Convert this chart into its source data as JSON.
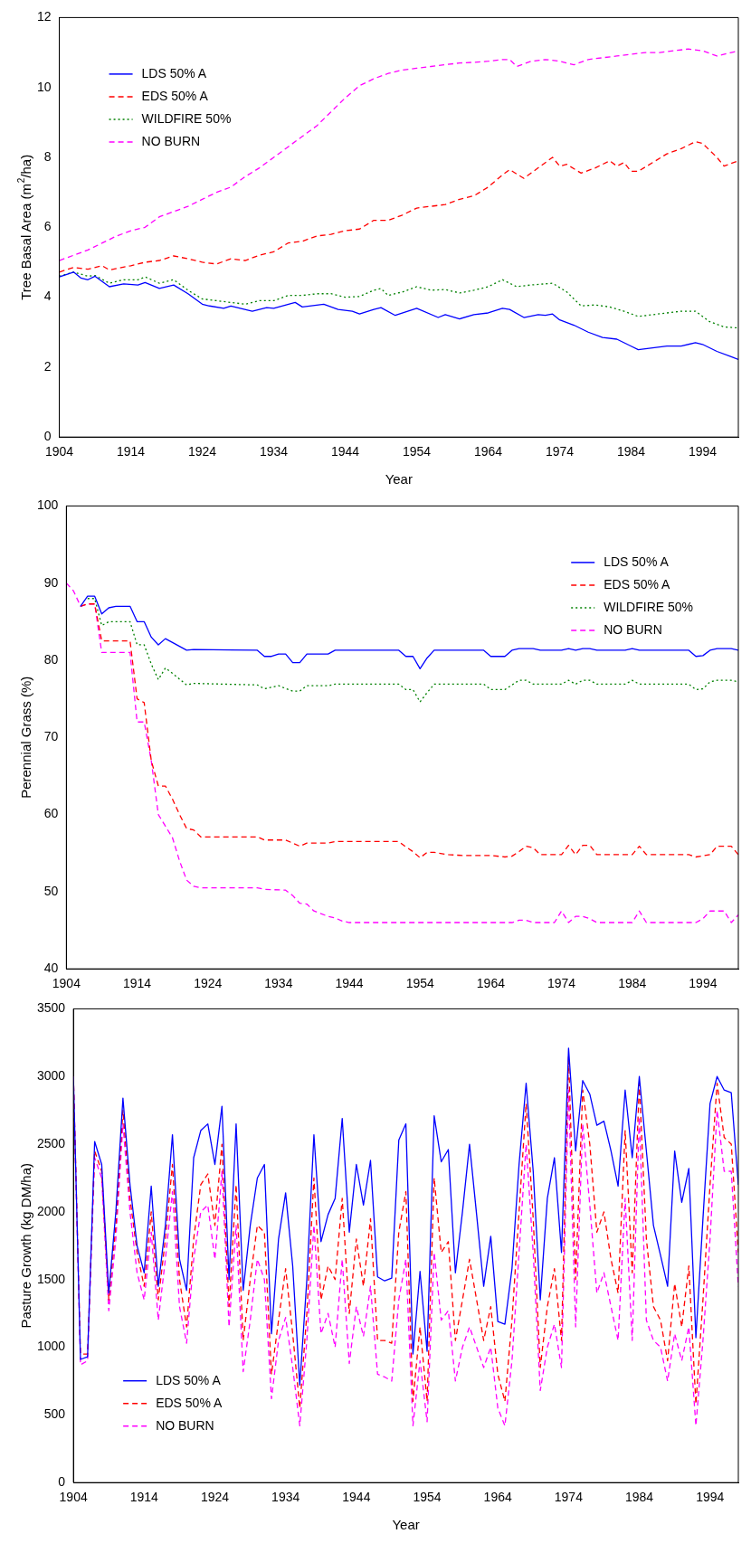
{
  "chart_data": [
    {
      "type": "line",
      "ylabel": "Tree Basal Area (m$^{2}$/ha)",
      "xlabel": "Year",
      "xlim": [
        1904,
        1999
      ],
      "xticks": [
        1904,
        1914,
        1924,
        1934,
        1944,
        1954,
        1964,
        1974,
        1984,
        1994
      ],
      "ylim": [
        0,
        12
      ],
      "yticks": [
        0,
        2,
        4,
        6,
        8,
        10,
        12
      ],
      "legend": "top left",
      "series": [
        {
          "name": "LDS 50% A",
          "color": "#0000ff",
          "line_style": "solid",
          "x": [
            1904,
            1906,
            1907,
            1908,
            1909,
            1911,
            1913,
            1915,
            1916,
            1918,
            1920,
            1922,
            1924,
            1925,
            1927,
            1928,
            1931,
            1933,
            1934,
            1937,
            1938,
            1941,
            1943,
            1945,
            1946,
            1948,
            1949,
            1951,
            1954,
            1957,
            1958,
            1960,
            1962,
            1964,
            1966,
            1967,
            1969,
            1971,
            1972,
            1973,
            1974,
            1976,
            1978,
            1980,
            1982,
            1984,
            1985,
            1987,
            1989,
            1991,
            1993,
            1994,
            1996,
            1998,
            1999
          ],
          "values": [
            4.58,
            4.72,
            4.55,
            4.5,
            4.6,
            4.3,
            4.38,
            4.35,
            4.42,
            4.25,
            4.35,
            4.1,
            3.8,
            3.75,
            3.68,
            3.75,
            3.6,
            3.7,
            3.68,
            3.85,
            3.72,
            3.8,
            3.65,
            3.6,
            3.52,
            3.65,
            3.7,
            3.48,
            3.68,
            3.42,
            3.5,
            3.38,
            3.5,
            3.55,
            3.68,
            3.65,
            3.42,
            3.5,
            3.48,
            3.52,
            3.35,
            3.2,
            3.0,
            2.85,
            2.8,
            2.6,
            2.5,
            2.55,
            2.6,
            2.6,
            2.7,
            2.65,
            2.45,
            2.3,
            2.22
          ]
        },
        {
          "name": "EDS 50% A",
          "color": "#ff0000",
          "line_style": "dashed",
          "x": [
            1904,
            1906,
            1908,
            1910,
            1911,
            1914,
            1916,
            1918,
            1920,
            1922,
            1924,
            1926,
            1928,
            1930,
            1932,
            1934,
            1936,
            1938,
            1940,
            1942,
            1944,
            1946,
            1948,
            1950,
            1952,
            1954,
            1956,
            1958,
            1960,
            1962,
            1964,
            1966,
            1967,
            1969,
            1971,
            1973,
            1974,
            1975,
            1977,
            1979,
            1981,
            1982,
            1983,
            1984,
            1985,
            1987,
            1989,
            1991,
            1993,
            1994,
            1996,
            1997,
            1999
          ],
          "values": [
            4.72,
            4.85,
            4.8,
            4.9,
            4.78,
            4.9,
            5.0,
            5.05,
            5.18,
            5.1,
            5.0,
            4.95,
            5.1,
            5.05,
            5.2,
            5.3,
            5.55,
            5.6,
            5.75,
            5.8,
            5.9,
            5.95,
            6.2,
            6.2,
            6.35,
            6.55,
            6.6,
            6.65,
            6.8,
            6.9,
            7.15,
            7.5,
            7.65,
            7.4,
            7.7,
            8.0,
            7.75,
            7.8,
            7.55,
            7.7,
            7.9,
            7.75,
            7.85,
            7.6,
            7.6,
            7.85,
            8.1,
            8.25,
            8.45,
            8.4,
            8.0,
            7.75,
            7.9
          ]
        },
        {
          "name": "WILDFIRE 50%",
          "color": "#008000",
          "line_style": "dotted",
          "x": [
            1904,
            1906,
            1908,
            1909,
            1911,
            1913,
            1915,
            1916,
            1918,
            1920,
            1922,
            1924,
            1926,
            1928,
            1930,
            1932,
            1934,
            1936,
            1938,
            1940,
            1942,
            1944,
            1946,
            1948,
            1949,
            1950,
            1952,
            1954,
            1956,
            1958,
            1960,
            1962,
            1964,
            1966,
            1968,
            1970,
            1973,
            1975,
            1977,
            1979,
            1981,
            1983,
            1985,
            1987,
            1989,
            1991,
            1993,
            1995,
            1997,
            1999
          ],
          "values": [
            4.6,
            4.72,
            4.6,
            4.62,
            4.4,
            4.5,
            4.5,
            4.58,
            4.4,
            4.5,
            4.2,
            3.95,
            3.9,
            3.85,
            3.8,
            3.9,
            3.9,
            4.05,
            4.05,
            4.1,
            4.1,
            4.0,
            4.02,
            4.2,
            4.25,
            4.05,
            4.15,
            4.3,
            4.2,
            4.22,
            4.12,
            4.2,
            4.3,
            4.5,
            4.3,
            4.35,
            4.4,
            4.15,
            3.75,
            3.78,
            3.72,
            3.6,
            3.45,
            3.5,
            3.55,
            3.6,
            3.6,
            3.3,
            3.15,
            3.12
          ]
        },
        {
          "name": "NO BURN",
          "color": "#ff00ff",
          "line_style": "dashed",
          "x": [
            1904,
            1906,
            1908,
            1910,
            1912,
            1914,
            1916,
            1918,
            1920,
            1922,
            1924,
            1926,
            1928,
            1930,
            1932,
            1934,
            1936,
            1938,
            1940,
            1942,
            1944,
            1946,
            1948,
            1950,
            1952,
            1954,
            1956,
            1958,
            1960,
            1962,
            1964,
            1966,
            1967,
            1968,
            1970,
            1972,
            1974,
            1975,
            1976,
            1978,
            1980,
            1982,
            1984,
            1986,
            1988,
            1990,
            1992,
            1994,
            1996,
            1998,
            1999
          ],
          "values": [
            5.05,
            5.2,
            5.35,
            5.55,
            5.75,
            5.9,
            6.0,
            6.3,
            6.45,
            6.6,
            6.8,
            7.0,
            7.15,
            7.45,
            7.7,
            8.0,
            8.3,
            8.6,
            8.9,
            9.3,
            9.7,
            10.05,
            10.25,
            10.4,
            10.5,
            10.55,
            10.6,
            10.65,
            10.7,
            10.72,
            10.75,
            10.8,
            10.8,
            10.6,
            10.75,
            10.8,
            10.75,
            10.7,
            10.65,
            10.8,
            10.85,
            10.9,
            10.95,
            11.0,
            11.0,
            11.05,
            11.1,
            11.05,
            10.9,
            11.0,
            11.05
          ]
        }
      ]
    },
    {
      "type": "line",
      "ylabel": "Perennial Grass (%)",
      "xlim": [
        1904,
        1999
      ],
      "xticks": [
        1904,
        1914,
        1924,
        1934,
        1944,
        1954,
        1964,
        1974,
        1984,
        1994
      ],
      "ylim": [
        40,
        100
      ],
      "yticks": [
        40,
        50,
        60,
        70,
        80,
        90,
        100
      ],
      "legend": "top right",
      "series": [
        {
          "name": "LDS 50% A",
          "color": "#0000ff",
          "line_style": "solid",
          "x": [
            1906,
            1907,
            1908,
            1909,
            1910,
            1911,
            1913,
            1914,
            1915,
            1916,
            1917,
            1918,
            1919,
            1921,
            1922,
            1931,
            1932,
            1933,
            1934,
            1935,
            1936,
            1937,
            1938,
            1941,
            1942,
            1951,
            1952,
            1953,
            1954,
            1955,
            1956,
            1963,
            1964,
            1966,
            1967,
            1968,
            1970,
            1971,
            1974,
            1975,
            1976,
            1977,
            1978,
            1979,
            1983,
            1984,
            1985,
            1992,
            1993,
            1994,
            1995,
            1996,
            1998,
            1999
          ],
          "values": [
            87,
            88.3,
            88.3,
            86,
            86.8,
            87,
            87,
            85,
            85,
            83,
            82,
            82.8,
            82.3,
            81.3,
            81.4,
            81.3,
            80.5,
            80.5,
            80.8,
            80.8,
            79.7,
            79.7,
            80.8,
            80.8,
            81.3,
            81.3,
            80.5,
            80.5,
            78.9,
            80.3,
            81.3,
            81.3,
            80.5,
            80.5,
            81.3,
            81.5,
            81.5,
            81.3,
            81.3,
            81.5,
            81.3,
            81.5,
            81.5,
            81.3,
            81.3,
            81.5,
            81.3,
            81.3,
            80.5,
            80.6,
            81.3,
            81.5,
            81.5,
            81.3
          ]
        },
        {
          "name": "EDS 50% A",
          "color": "#ff0000",
          "line_style": "dashed",
          "x": [
            1906,
            1907,
            1908,
            1909,
            1913,
            1914,
            1915,
            1916,
            1917,
            1918,
            1919,
            1920,
            1921,
            1922,
            1923,
            1931,
            1932,
            1935,
            1937,
            1938,
            1941,
            1942,
            1951,
            1952,
            1953,
            1954,
            1955,
            1956,
            1958,
            1960,
            1964,
            1966,
            1967,
            1968,
            1969,
            1970,
            1971,
            1974,
            1975,
            1976,
            1977,
            1978,
            1979,
            1984,
            1985,
            1986,
            1992,
            1993,
            1995,
            1996,
            1998,
            1999
          ],
          "values": [
            87,
            87.3,
            87.3,
            82.5,
            82.5,
            75,
            74.5,
            67,
            63.7,
            63.7,
            62,
            60,
            58.2,
            58,
            57.1,
            57.1,
            56.7,
            56.7,
            55.9,
            56.3,
            56.3,
            56.5,
            56.5,
            55.8,
            55.2,
            54.4,
            55.1,
            55.1,
            54.8,
            54.7,
            54.7,
            54.5,
            54.6,
            55.2,
            55.9,
            55.7,
            54.8,
            54.8,
            56,
            54.8,
            56,
            56,
            54.8,
            54.8,
            55.9,
            54.8,
            54.8,
            54.5,
            54.8,
            55.9,
            55.9,
            54.8
          ]
        },
        {
          "name": "WILDFIRE 50%",
          "color": "#008000",
          "line_style": "dotted",
          "x": [
            1907,
            1908,
            1909,
            1910,
            1913,
            1914,
            1915,
            1916,
            1917,
            1918,
            1919,
            1921,
            1922,
            1931,
            1932,
            1934,
            1936,
            1937,
            1938,
            1941,
            1942,
            1951,
            1952,
            1953,
            1954,
            1955,
            1956,
            1963,
            1964,
            1966,
            1968,
            1969,
            1970,
            1974,
            1975,
            1976,
            1977,
            1978,
            1979,
            1983,
            1984,
            1985,
            1992,
            1993,
            1994,
            1995,
            1996,
            1998,
            1999
          ],
          "values": [
            88,
            88,
            84.5,
            85,
            85,
            82,
            82,
            79.5,
            77.5,
            79,
            78.3,
            76.8,
            77,
            76.8,
            76.3,
            76.7,
            76,
            76,
            76.7,
            76.7,
            76.9,
            76.9,
            76.2,
            76.2,
            74.6,
            75.8,
            76.9,
            76.9,
            76.2,
            76.2,
            77.4,
            77.4,
            76.9,
            76.9,
            77.4,
            76.9,
            77.4,
            77.4,
            76.9,
            76.9,
            77.4,
            76.9,
            76.9,
            76.2,
            76.3,
            77.2,
            77.4,
            77.4,
            77.2
          ]
        },
        {
          "name": "NO BURN",
          "color": "#ff00ff",
          "line_style": "dashed",
          "x": [
            1904,
            1905,
            1906,
            1907,
            1908,
            1909,
            1913,
            1914,
            1915,
            1916,
            1917,
            1918,
            1919,
            1920,
            1921,
            1922,
            1923,
            1931,
            1932,
            1935,
            1936,
            1937,
            1938,
            1939,
            1941,
            1942,
            1943,
            1944,
            1967,
            1968,
            1969,
            1970,
            1973,
            1974,
            1975,
            1976,
            1977,
            1978,
            1979,
            1984,
            1985,
            1986,
            1993,
            1994,
            1995,
            1997,
            1998,
            1999
          ],
          "values": [
            90,
            89,
            87,
            87.3,
            87.3,
            81,
            81,
            72,
            72,
            67,
            60,
            58.5,
            57,
            54,
            51.5,
            50.7,
            50.5,
            50.5,
            50.3,
            50.2,
            49.5,
            48.5,
            48.4,
            47.5,
            46.8,
            46.6,
            46.2,
            46,
            46,
            46.3,
            46.3,
            46,
            46,
            47.5,
            46,
            46.8,
            46.8,
            46.5,
            46,
            46,
            47.5,
            46,
            46,
            46.5,
            47.5,
            47.5,
            46,
            47
          ]
        }
      ]
    },
    {
      "type": "line",
      "ylabel": "Pasture Growth (kg DM/ha)",
      "xlabel": "Year",
      "xlim": [
        1904,
        1998
      ],
      "xticks": [
        1904,
        1914,
        1924,
        1934,
        1944,
        1954,
        1964,
        1974,
        1984,
        1994
      ],
      "ylim": [
        0,
        3500
      ],
      "yticks": [
        0,
        500,
        1000,
        1500,
        2000,
        2500,
        3000,
        3500
      ],
      "legend": "bottom left",
      "x": [
        1904,
        1905,
        1906,
        1907,
        1908,
        1909,
        1910,
        1911,
        1912,
        1913,
        1914,
        1915,
        1916,
        1917,
        1918,
        1919,
        1920,
        1921,
        1922,
        1923,
        1924,
        1925,
        1926,
        1927,
        1928,
        1929,
        1930,
        1931,
        1932,
        1933,
        1934,
        1935,
        1936,
        1937,
        1938,
        1939,
        1940,
        1941,
        1942,
        1943,
        1944,
        1945,
        1946,
        1947,
        1948,
        1949,
        1950,
        1951,
        1952,
        1953,
        1954,
        1955,
        1956,
        1957,
        1958,
        1959,
        1960,
        1961,
        1962,
        1963,
        1964,
        1965,
        1966,
        1967,
        1968,
        1969,
        1970,
        1971,
        1972,
        1973,
        1974,
        1975,
        1976,
        1977,
        1978,
        1979,
        1980,
        1981,
        1982,
        1983,
        1984,
        1985,
        1986,
        1987,
        1988,
        1989,
        1990,
        1991,
        1992,
        1993,
        1994,
        1995,
        1996,
        1997,
        1998
      ],
      "series": [
        {
          "name": "LDS 50% A",
          "color": "#0000ff",
          "line_style": "solid",
          "values": [
            3000,
            910,
            930,
            2520,
            2350,
            1400,
            2000,
            2840,
            2200,
            1750,
            1550,
            2190,
            1450,
            1900,
            2570,
            1650,
            1420,
            2400,
            2600,
            2650,
            2350,
            2780,
            1500,
            2650,
            1420,
            1900,
            2250,
            2350,
            1100,
            1800,
            2140,
            1600,
            720,
            1500,
            2570,
            1780,
            1980,
            2100,
            2690,
            1850,
            2350,
            2050,
            2380,
            1520,
            1490,
            1510,
            2530,
            2650,
            950,
            1560,
            970,
            2710,
            2370,
            2460,
            1550,
            2000,
            2500,
            1980,
            1450,
            1820,
            1190,
            1170,
            1580,
            2350,
            2950,
            2300,
            1350,
            2100,
            2400,
            1700,
            3210,
            2450,
            2970,
            2870,
            2640,
            2670,
            2450,
            2190,
            2900,
            2400,
            3000,
            2450,
            1900,
            1680,
            1450,
            2450,
            2070,
            2320,
            1070,
            1950,
            2800,
            3000,
            2900,
            2880,
            2200
          ]
        },
        {
          "name": "EDS 50% A",
          "color": "#ff0000",
          "line_style": "dashed",
          "values": [
            3000,
            950,
            950,
            2450,
            2300,
            1350,
            1900,
            2750,
            2100,
            1700,
            1450,
            2000,
            1350,
            1800,
            2350,
            1500,
            1150,
            1800,
            2200,
            2280,
            1900,
            2500,
            1300,
            2200,
            1050,
            1500,
            1900,
            1850,
            800,
            1200,
            1580,
            1100,
            550,
            1250,
            2250,
            1350,
            1600,
            1500,
            2100,
            1250,
            1800,
            1450,
            1950,
            1050,
            1050,
            1030,
            1850,
            2150,
            600,
            1150,
            600,
            2250,
            1700,
            1780,
            1050,
            1350,
            1650,
            1350,
            1050,
            1300,
            800,
            600,
            1200,
            2000,
            2800,
            1950,
            850,
            1300,
            1580,
            1050,
            3150,
            1500,
            2900,
            2500,
            1850,
            2000,
            1650,
            1400,
            2600,
            1550,
            2950,
            1800,
            1300,
            1200,
            900,
            1470,
            1150,
            1600,
            580,
            1350,
            2200,
            2950,
            2550,
            2500,
            1700
          ]
        },
        {
          "name": "NO BURN",
          "color": "#ff00ff",
          "line_style": "dashed",
          "values": [
            3000,
            870,
            900,
            2400,
            2250,
            1270,
            1800,
            2650,
            2000,
            1550,
            1350,
            1850,
            1200,
            1650,
            2150,
            1300,
            1030,
            1650,
            2000,
            2050,
            1650,
            2300,
            1150,
            1900,
            820,
            1200,
            1650,
            1500,
            620,
            1050,
            1220,
            850,
            420,
            1050,
            1900,
            1100,
            1250,
            1000,
            1650,
            880,
            1300,
            1080,
            1450,
            800,
            780,
            750,
            1350,
            1650,
            420,
            900,
            450,
            1700,
            1200,
            1270,
            750,
            1000,
            1150,
            1000,
            850,
            1000,
            550,
            420,
            900,
            1700,
            2500,
            1700,
            680,
            1000,
            1170,
            850,
            2900,
            1150,
            2650,
            2050,
            1400,
            1550,
            1300,
            1050,
            2100,
            1050,
            2700,
            1200,
            1050,
            1000,
            750,
            1100,
            900,
            1150,
            420,
            1050,
            1800,
            2750,
            2300,
            2300,
            1450
          ]
        }
      ]
    }
  ]
}
